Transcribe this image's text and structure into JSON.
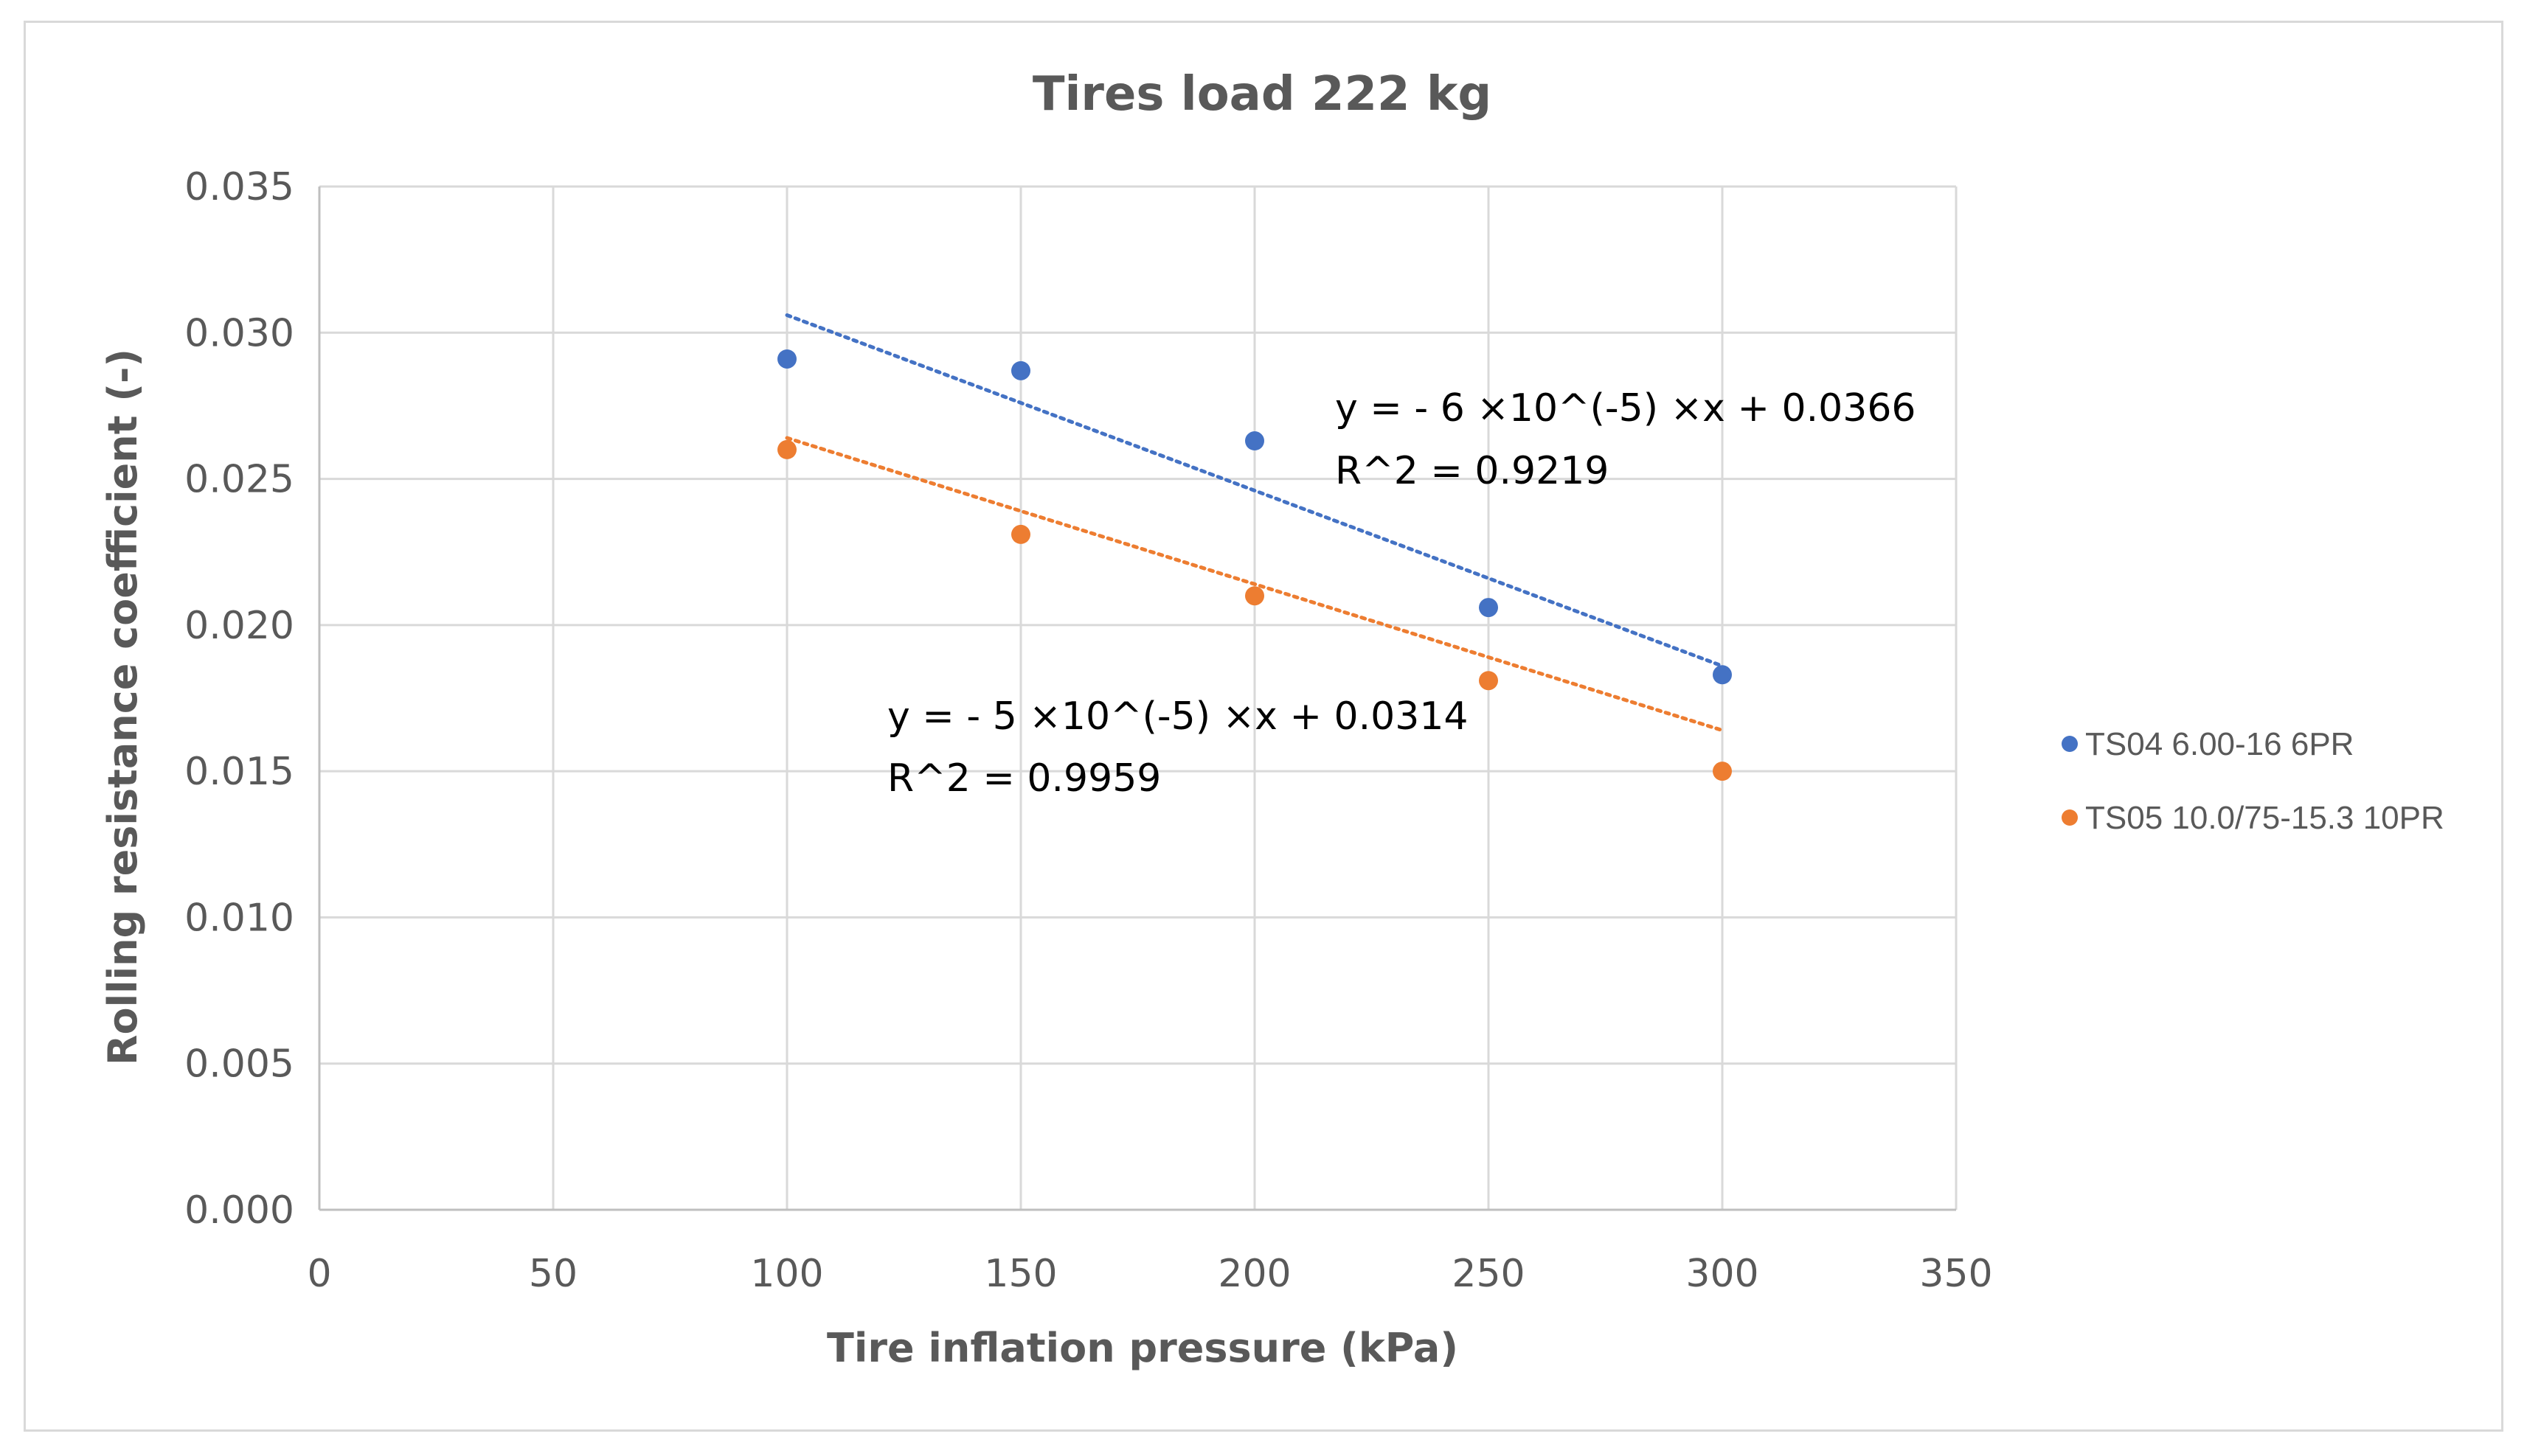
{
  "chart_data": {
    "type": "scatter",
    "title": "Tires load 222 kg",
    "xlabel": "Tire inflation pressure (kPa)",
    "ylabel": "Rolling resistance coefficient (-)",
    "xlim": [
      0,
      350
    ],
    "ylim": [
      0,
      0.035
    ],
    "x_ticks": [
      "0",
      "50",
      "100",
      "150",
      "200",
      "250",
      "300",
      "350"
    ],
    "x_tick_values": [
      0,
      50,
      100,
      150,
      200,
      250,
      300,
      350
    ],
    "y_ticks": [
      "0.000",
      "0.005",
      "0.010",
      "0.015",
      "0.020",
      "0.025",
      "0.030",
      "0.035"
    ],
    "y_tick_values": [
      0,
      0.005,
      0.01,
      0.015,
      0.02,
      0.025,
      0.03,
      0.035
    ],
    "grid": true,
    "legend_position": "right",
    "series": [
      {
        "name": "TS04 6.00-16 6PR",
        "color": "#4472c4",
        "x": [
          100,
          150,
          200,
          250,
          300
        ],
        "y": [
          0.0291,
          0.0287,
          0.0263,
          0.0206,
          0.0183
        ],
        "trendline": {
          "slope": -6e-05,
          "intercept": 0.0366,
          "x_range": [
            100,
            300
          ],
          "equation": "y = - 6 ×10^(-5) ×x + 0.0366",
          "r2_label": "R^2 = 0.9219"
        }
      },
      {
        "name": "TS05 10.0/75-15.3 10PR",
        "color": "#ed7d31",
        "x": [
          100,
          150,
          200,
          250,
          300
        ],
        "y": [
          0.026,
          0.0231,
          0.021,
          0.0181,
          0.015
        ],
        "trendline": {
          "slope": -5e-05,
          "intercept": 0.0314,
          "x_range": [
            100,
            300
          ],
          "equation": "y = - 5 ×10^(-5) ×x + 0.0314",
          "r2_label": "R^2 = 0.9959"
        }
      }
    ]
  }
}
